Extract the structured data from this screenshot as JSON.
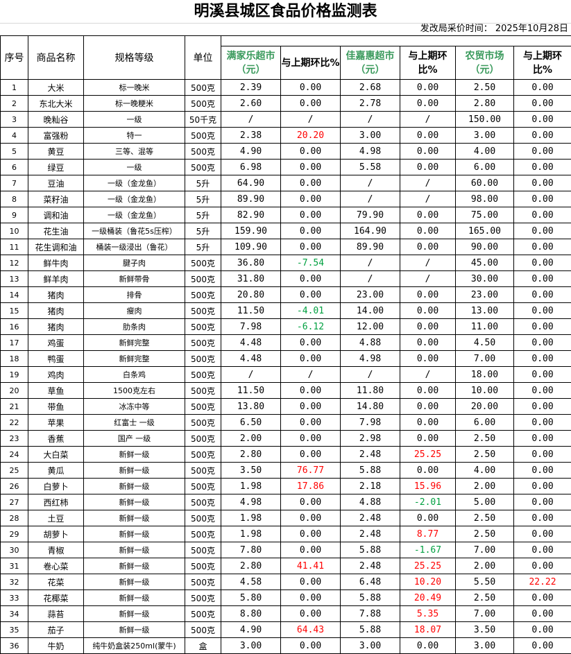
{
  "title": "明溪县城区食品价格监测表",
  "subtitle": "发改局采价时间：  2025年10月28日",
  "headers": {
    "no": "序号",
    "name": "商品名称",
    "spec": "规格等级",
    "unit": "单位",
    "m1": "满家乐超市（元）",
    "c1": "与上期环比%",
    "m2": "佳嘉惠超市（元）",
    "c2": "与上期环比%",
    "m3": "农贸市场（元）",
    "c3": "与上期环比%"
  },
  "colors": {
    "up": "#ff0000",
    "down": "#00a040",
    "store_header": "#3a9a5c"
  },
  "rows": [
    [
      "1",
      "大米",
      "标一晚米",
      "500克",
      "2.39",
      "0.00",
      "2.68",
      "0.00",
      "2.50",
      "0.00"
    ],
    [
      "2",
      "东北大米",
      "标一晚粳米",
      "500克",
      "2.60",
      "0.00",
      "2.78",
      "0.00",
      "2.80",
      "0.00"
    ],
    [
      "3",
      "晚籼谷",
      "一级",
      "50千克",
      "/",
      "/",
      "/",
      "/",
      "150.00",
      "0.00"
    ],
    [
      "4",
      "富强粉",
      "特一",
      "500克",
      "2.38",
      "20.20",
      "3.00",
      "0.00",
      "3.00",
      "0.00"
    ],
    [
      "5",
      "黄豆",
      "三等、混等",
      "500克",
      "4.90",
      "0.00",
      "4.98",
      "0.00",
      "4.00",
      "0.00"
    ],
    [
      "6",
      "绿豆",
      "一级",
      "500克",
      "6.98",
      "0.00",
      "5.58",
      "0.00",
      "6.00",
      "0.00"
    ],
    [
      "7",
      "豆油",
      "一级（金龙鱼）",
      "5升",
      "64.90",
      "0.00",
      "/",
      "/",
      "60.00",
      "0.00"
    ],
    [
      "8",
      "菜籽油",
      "一级（金龙鱼）",
      "5升",
      "89.90",
      "0.00",
      "/",
      "/",
      "98.00",
      "0.00"
    ],
    [
      "9",
      "调和油",
      "一级（金龙鱼）",
      "5升",
      "82.90",
      "0.00",
      "79.90",
      "0.00",
      "75.00",
      "0.00"
    ],
    [
      "10",
      "花生油",
      "一级桶装（鲁花5s压榨）",
      "5升",
      "159.90",
      "0.00",
      "164.90",
      "0.00",
      "165.00",
      "0.00"
    ],
    [
      "11",
      "花生调和油",
      "桶装一级浸出（鲁花）",
      "5升",
      "109.90",
      "0.00",
      "89.90",
      "0.00",
      "90.00",
      "0.00"
    ],
    [
      "12",
      "鲜牛肉",
      "腱子肉",
      "500克",
      "36.80",
      "-7.54",
      "/",
      "/",
      "45.00",
      "0.00"
    ],
    [
      "13",
      "鲜羊肉",
      "新鲜带骨",
      "500克",
      "31.80",
      "0.00",
      "/",
      "/",
      "30.00",
      "0.00"
    ],
    [
      "14",
      "猪肉",
      "排骨",
      "500克",
      "20.80",
      "0.00",
      "23.00",
      "0.00",
      "23.00",
      "0.00"
    ],
    [
      "15",
      "猪肉",
      "瘦肉",
      "500克",
      "11.50",
      "-4.01",
      "14.00",
      "0.00",
      "13.00",
      "0.00"
    ],
    [
      "16",
      "猪肉",
      "肋条肉",
      "500克",
      "7.98",
      "-6.12",
      "12.00",
      "0.00",
      "11.00",
      "0.00"
    ],
    [
      "17",
      "鸡蛋",
      "新鲜完整",
      "500克",
      "4.48",
      "0.00",
      "4.88",
      "0.00",
      "4.50",
      "0.00"
    ],
    [
      "18",
      "鸭蛋",
      "新鲜完整",
      "500克",
      "4.48",
      "0.00",
      "4.98",
      "0.00",
      "7.00",
      "0.00"
    ],
    [
      "19",
      "鸡肉",
      "白条鸡",
      "500克",
      "/",
      "/",
      "/",
      "/",
      "18.00",
      "0.00"
    ],
    [
      "20",
      "草鱼",
      "1500克左右",
      "500克",
      "11.50",
      "0.00",
      "11.80",
      "0.00",
      "10.00",
      "0.00"
    ],
    [
      "21",
      "带鱼",
      "冰冻中等",
      "500克",
      "13.80",
      "0.00",
      "14.80",
      "0.00",
      "20.00",
      "0.00"
    ],
    [
      "22",
      "苹果",
      "红富士 一级",
      "500克",
      "6.50",
      "0.00",
      "7.98",
      "0.00",
      "6.00",
      "0.00"
    ],
    [
      "23",
      "香蕉",
      "国产 一级",
      "500克",
      "2.00",
      "0.00",
      "2.98",
      "0.00",
      "2.50",
      "0.00"
    ],
    [
      "24",
      "大白菜",
      "新鲜一级",
      "500克",
      "2.80",
      "0.00",
      "2.48",
      "25.25",
      "2.50",
      "0.00"
    ],
    [
      "25",
      "黄瓜",
      "新鲜一级",
      "500克",
      "3.50",
      "76.77",
      "5.88",
      "0.00",
      "4.00",
      "0.00"
    ],
    [
      "26",
      "白萝卜",
      "新鲜一级",
      "500克",
      "1.98",
      "17.86",
      "2.18",
      "15.96",
      "2.00",
      "0.00"
    ],
    [
      "27",
      "西红柿",
      "新鲜一级",
      "500克",
      "4.98",
      "0.00",
      "4.88",
      "-2.01",
      "5.00",
      "0.00"
    ],
    [
      "28",
      "土豆",
      "新鲜一级",
      "500克",
      "1.98",
      "0.00",
      "2.48",
      "0.00",
      "2.50",
      "0.00"
    ],
    [
      "29",
      "胡萝卜",
      "新鲜一级",
      "500克",
      "1.98",
      "0.00",
      "2.48",
      "8.77",
      "2.50",
      "0.00"
    ],
    [
      "30",
      "青椒",
      "新鲜一级",
      "500克",
      "7.80",
      "0.00",
      "5.88",
      "-1.67",
      "7.00",
      "0.00"
    ],
    [
      "31",
      "卷心菜",
      "新鲜一级",
      "500克",
      "2.80",
      "41.41",
      "2.48",
      "25.25",
      "2.00",
      "0.00"
    ],
    [
      "32",
      "花菜",
      "新鲜一级",
      "500克",
      "4.58",
      "0.00",
      "6.48",
      "10.20",
      "5.50",
      "22.22"
    ],
    [
      "33",
      "花椰菜",
      "新鲜一级",
      "500克",
      "5.80",
      "0.00",
      "5.88",
      "20.49",
      "2.50",
      "0.00"
    ],
    [
      "34",
      "蒜苔",
      "新鲜一级",
      "500克",
      "8.80",
      "0.00",
      "7.88",
      "5.35",
      "7.00",
      "0.00"
    ],
    [
      "35",
      "茄子",
      "新鲜一级",
      "500克",
      "4.90",
      "64.43",
      "5.88",
      "18.07",
      "3.50",
      "0.00"
    ],
    [
      "36",
      "牛奶",
      "纯牛奶盒装250ml(蒙牛)",
      "盒",
      "3.00",
      "0.00",
      "3.00",
      "0.00",
      "3.00",
      "0.00"
    ]
  ]
}
